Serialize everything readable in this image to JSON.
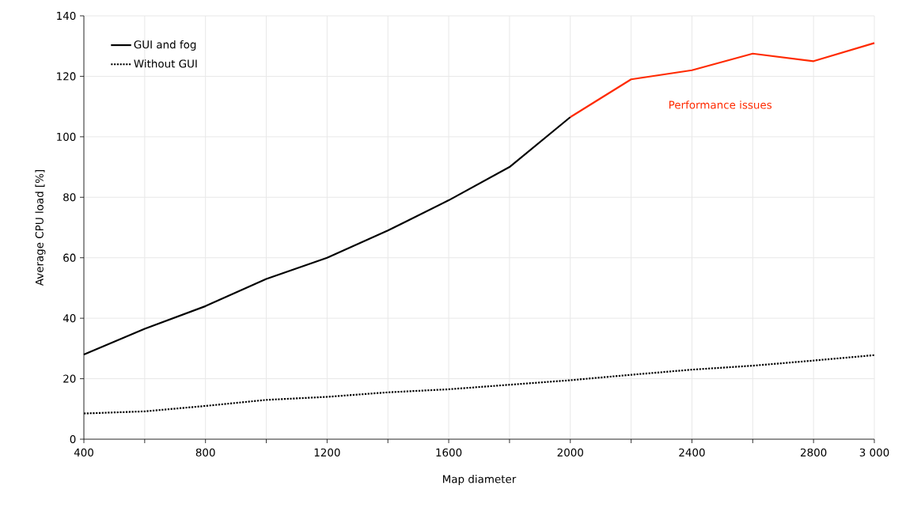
{
  "chart_data": {
    "type": "line",
    "xlabel": "Map diameter",
    "ylabel": "Average CPU load [%]",
    "series": [
      {
        "name": "GUI and fog",
        "color": "#000000",
        "line_style": "solid",
        "x": [
          400,
          600,
          800,
          1000,
          1200,
          1400,
          1600,
          1800,
          2000
        ],
        "values": [
          28,
          36.5,
          44,
          53,
          60,
          69,
          79,
          90,
          106.5
        ]
      },
      {
        "name": "Without GUI",
        "color": "#000000",
        "line_style": "dotted",
        "x": [
          400,
          600,
          800,
          1000,
          1200,
          1400,
          1600,
          1800,
          2000,
          2200,
          2400,
          2600,
          2800,
          3000
        ],
        "values": [
          8.5,
          9.2,
          11,
          13,
          14,
          15.5,
          16.5,
          18,
          19.5,
          21.3,
          23,
          24.3,
          26,
          27.8
        ]
      },
      {
        "color": "#ff2a00",
        "line_style": "solid",
        "x": [
          2000,
          2200,
          2400,
          2600,
          2800,
          3000
        ],
        "values": [
          106.5,
          119,
          122,
          127.5,
          125,
          131
        ]
      }
    ],
    "annotations": [
      "Performance issues"
    ],
    "xlim": [
      400,
      3000
    ],
    "ylim": [
      0,
      140
    ],
    "xticks": [
      400,
      {
        "value": 600,
        "label": null
      },
      800,
      {
        "value": 1000,
        "label": null
      },
      1200,
      {
        "value": 1400,
        "label": null
      },
      1600,
      {
        "value": 1800,
        "label": null
      },
      2000,
      {
        "value": 2200,
        "label": null
      },
      2400,
      {
        "value": 2600,
        "label": null
      },
      2800,
      {
        "value": 3000,
        "label": "3 000"
      }
    ],
    "yticks": [
      0,
      20,
      40,
      60,
      80,
      100,
      120,
      140
    ],
    "grid": true,
    "legend": "top left",
    "marker": "none"
  }
}
